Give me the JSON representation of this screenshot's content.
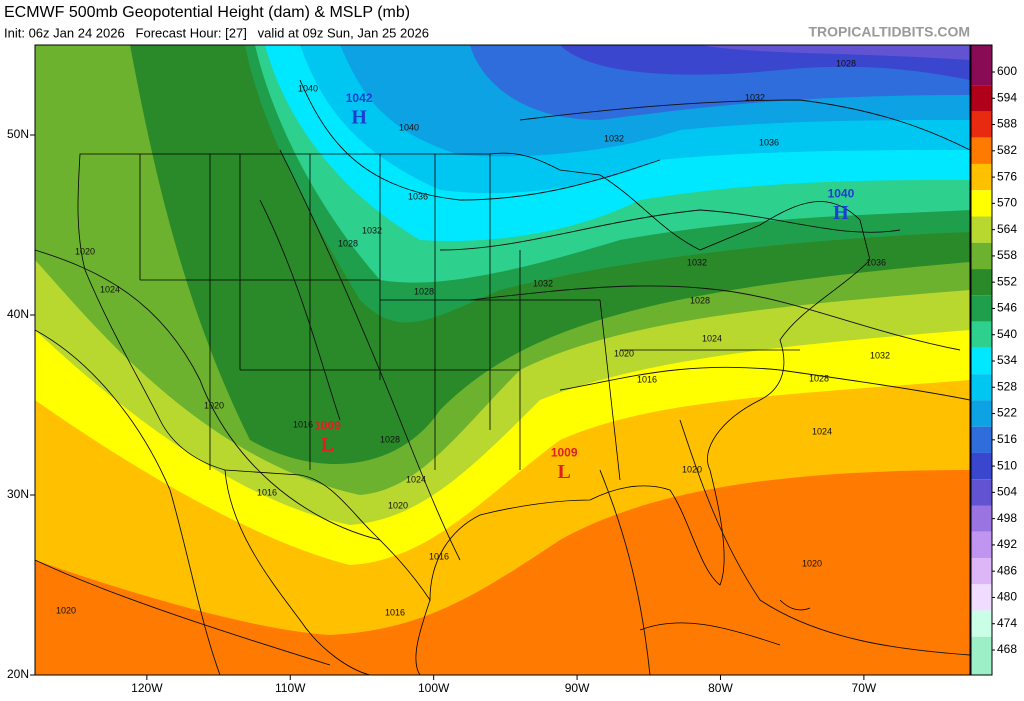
{
  "header": {
    "title": "ECMWF 500mb Geopotential Height (dam) & MSLP (mb)",
    "subtitle": "Init: 06z Jan 24 2026   Forecast Hour: [27]   valid at 09z Sun, Jan 25 2026",
    "site": "TROPICALTIDBITS.COM"
  },
  "chart_data": {
    "type": "map",
    "xlim": [
      -127.8,
      -62.6
    ],
    "ylim": [
      20,
      55
    ],
    "xticks": [
      {
        "value": -120,
        "label": "120W"
      },
      {
        "value": -110,
        "label": "110W"
      },
      {
        "value": -100,
        "label": "100W"
      },
      {
        "value": -90,
        "label": "90W"
      },
      {
        "value": -80,
        "label": "80W"
      },
      {
        "value": -70,
        "label": "70W"
      }
    ],
    "yticks": [
      {
        "value": 20,
        "label": "20N"
      },
      {
        "value": 30,
        "label": "30N"
      },
      {
        "value": 40,
        "label": "40N"
      },
      {
        "value": 50,
        "label": "50N"
      }
    ],
    "colorbar": {
      "levels": [
        600,
        594,
        588,
        582,
        576,
        570,
        564,
        558,
        552,
        546,
        540,
        534,
        528,
        522,
        516,
        510,
        504,
        498,
        492,
        486,
        480,
        474,
        468
      ],
      "colors": [
        "#8a0b55",
        "#b0001a",
        "#e82a10",
        "#ff7a00",
        "#ffc000",
        "#ffff00",
        "#b8d830",
        "#6cb22e",
        "#2a8a2a",
        "#1f9f4c",
        "#2ed08e",
        "#00e8ff",
        "#00c6f2",
        "#0ca2e4",
        "#2f6ddc",
        "#3b46cf",
        "#6253d2",
        "#9a74e0",
        "#c095f0",
        "#ddb6f8",
        "#f0dcff",
        "#c8ffe6",
        "#9cefc6"
      ]
    },
    "centers": [
      {
        "letter": "H",
        "pressure": 1042,
        "lon": -105.2,
        "lat": 50.9
      },
      {
        "letter": "H",
        "pressure": 1040,
        "lon": -71.6,
        "lat": 45.6
      },
      {
        "letter": "L",
        "pressure": 1009,
        "lon": -107.4,
        "lat": 32.7
      },
      {
        "letter": "L",
        "pressure": 1009,
        "lon": -90.9,
        "lat": 31.2
      }
    ],
    "isobar_labels": [
      1040,
      1040,
      1036,
      1032,
      1028,
      1028,
      1032,
      1032,
      1032,
      1036,
      1028,
      1032,
      1036,
      1028,
      1024,
      1020,
      1016,
      1028,
      1024,
      1032,
      1028,
      1024,
      1020,
      1020,
      1024,
      1020,
      1016,
      1016,
      1020,
      1016,
      1016,
      1020,
      1020
    ]
  }
}
